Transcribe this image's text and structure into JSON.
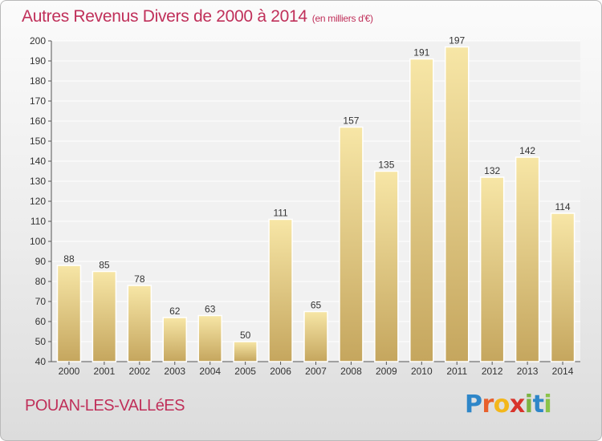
{
  "header": {
    "title": "Autres Revenus Divers de 2000 à 2014",
    "subtitle": "(en milliers d'€)"
  },
  "footer": {
    "commune": "POUAN-LES-VALLéES",
    "logo": "Proxiti"
  },
  "colors": {
    "title": "#c0305a",
    "bar_light": "#f6e3a0",
    "bar_dark": "#c8aa62"
  },
  "chart_data": {
    "type": "bar",
    "title": "Autres Revenus Divers de 2000 à 2014",
    "xlabel": "",
    "ylabel": "",
    "categories": [
      "2000",
      "2001",
      "2002",
      "2003",
      "2004",
      "2005",
      "2006",
      "2007",
      "2008",
      "2009",
      "2010",
      "2011",
      "2012",
      "2013",
      "2014"
    ],
    "values": [
      88,
      85,
      78,
      62,
      63,
      50,
      111,
      65,
      157,
      135,
      191,
      197,
      132,
      142,
      114
    ],
    "ylim": [
      40,
      200
    ],
    "yticks": [
      40,
      50,
      60,
      70,
      80,
      90,
      100,
      110,
      120,
      130,
      140,
      150,
      160,
      170,
      180,
      190,
      200
    ],
    "grid": true,
    "data_labels": true,
    "legend": "none"
  }
}
